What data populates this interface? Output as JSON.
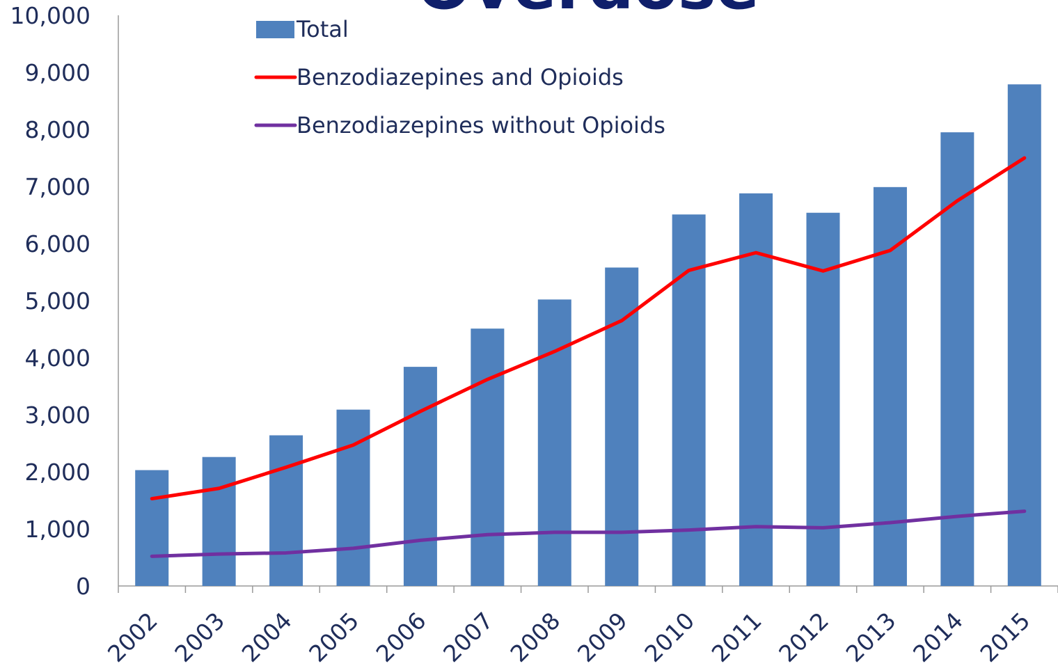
{
  "chart_data": {
    "type": "bar",
    "title": "Overdose",
    "categories": [
      "2002",
      "2003",
      "2004",
      "2005",
      "2006",
      "2007",
      "2008",
      "2009",
      "2010",
      "2011",
      "2012",
      "2013",
      "2014",
      "2015"
    ],
    "series": [
      {
        "name": "Total",
        "kind": "bar",
        "color": "#4f81bd",
        "values": [
          2030,
          2260,
          2640,
          3090,
          3840,
          4510,
          5020,
          5580,
          6510,
          6880,
          6540,
          6990,
          7950,
          8790
        ]
      },
      {
        "name": "Benzodiazepines and Opioids",
        "kind": "line",
        "color": "#ff0000",
        "values": [
          1530,
          1710,
          2080,
          2470,
          3060,
          3620,
          4110,
          4650,
          5530,
          5840,
          5520,
          5880,
          6750,
          7500
        ]
      },
      {
        "name": "Benzodiazepines without Opioids",
        "kind": "line",
        "color": "#7030a0",
        "values": [
          520,
          560,
          580,
          660,
          800,
          900,
          940,
          940,
          980,
          1040,
          1020,
          1110,
          1220,
          1310
        ]
      }
    ],
    "y_ticks": [
      "0",
      "1,000",
      "2,000",
      "3,000",
      "4,000",
      "5,000",
      "6,000",
      "7,000",
      "8,000",
      "9,000",
      "10,000"
    ],
    "ylim": [
      0,
      10000
    ],
    "grid": false,
    "legend_position": "top-left"
  }
}
